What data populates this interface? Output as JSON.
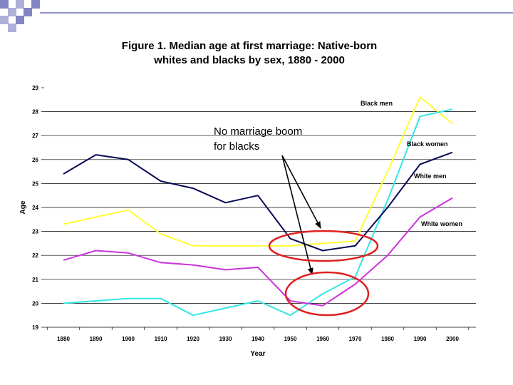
{
  "slide": {
    "deco_color": "#6d6fb8"
  },
  "chart_data": {
    "type": "line",
    "title": [
      "Figure 1. Median age at first marriage: Native-born",
      "whites and blacks by sex, 1880 - 2000"
    ],
    "xlabel": "Year",
    "ylabel": "Age",
    "x": [
      1880,
      1890,
      1900,
      1910,
      1920,
      1930,
      1940,
      1950,
      1960,
      1970,
      1980,
      1990,
      2000
    ],
    "ylim": [
      19,
      29
    ],
    "yticks": [
      19,
      20,
      21,
      22,
      23,
      24,
      25,
      26,
      27,
      28,
      29
    ],
    "grid": "horizontal",
    "series": [
      {
        "name": "Black men",
        "color": "#ffff33",
        "values": [
          23.3,
          23.6,
          23.9,
          22.9,
          22.4,
          22.4,
          22.4,
          22.4,
          22.5,
          22.6,
          25.5,
          28.6,
          27.5
        ]
      },
      {
        "name": "Black women",
        "color": "#33e6e6",
        "values": [
          20.0,
          20.1,
          20.2,
          20.2,
          19.5,
          19.8,
          20.1,
          19.5,
          20.4,
          21.1,
          24.3,
          27.8,
          28.1
        ]
      },
      {
        "name": "White men",
        "color": "#0a0a55",
        "values": [
          25.4,
          26.2,
          26.0,
          25.1,
          24.8,
          24.2,
          24.5,
          22.7,
          22.2,
          22.4,
          24.0,
          25.8,
          26.3
        ]
      },
      {
        "name": "White women",
        "color": "#cc33dd",
        "values": [
          21.8,
          22.2,
          22.1,
          21.7,
          21.6,
          21.4,
          21.5,
          20.1,
          19.9,
          20.8,
          22.0,
          23.6,
          24.4
        ]
      }
    ],
    "annotation": {
      "text": [
        "No marriage boom",
        "for blacks"
      ],
      "color": "#000000",
      "ellipse_color": "#e02020"
    }
  }
}
